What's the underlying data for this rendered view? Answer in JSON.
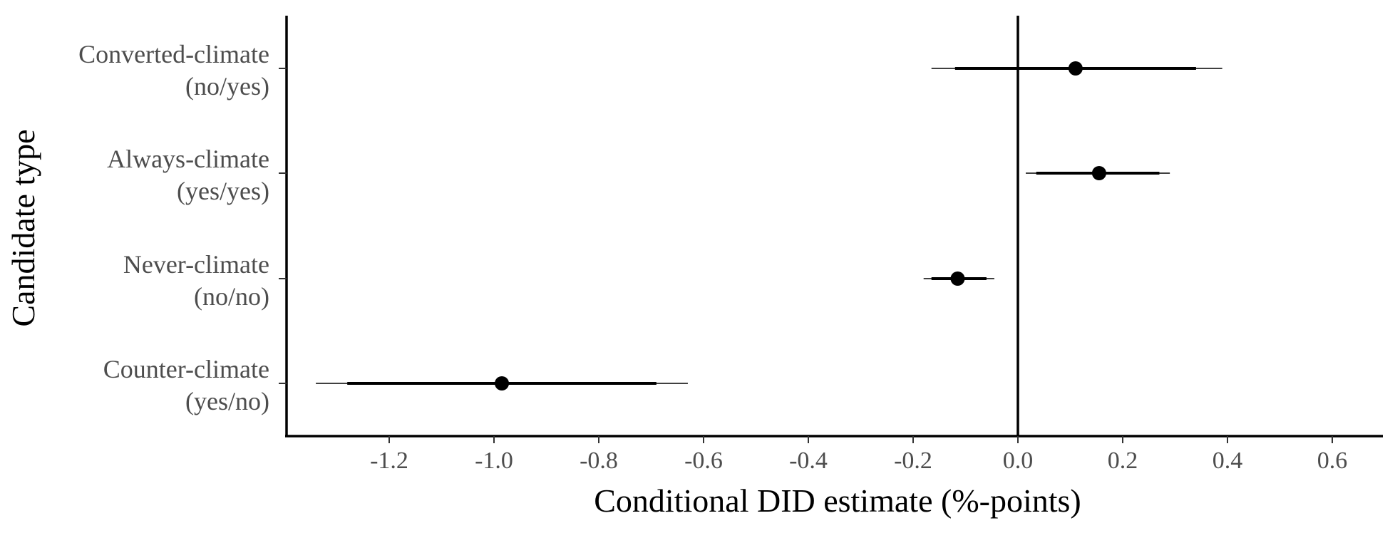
{
  "chart_data": {
    "type": "scatter",
    "subtype": "coefficient-plot",
    "title": "",
    "xlabel": "Conditional DID estimate (%-points)",
    "ylabel": "Candidate type",
    "xlim": [
      -1.4,
      0.7
    ],
    "x_ticks": [
      -1.2,
      -1.0,
      -0.8,
      -0.6,
      -0.4,
      -0.2,
      0.0,
      0.2,
      0.4,
      0.6
    ],
    "x_tick_labels": [
      "-1.2",
      "-1.0",
      "-0.8",
      "-0.6",
      "-0.4",
      "-0.2",
      "0.0",
      "0.2",
      "0.4",
      "0.6"
    ],
    "reference_line_x": 0,
    "grid": false,
    "legend": "none",
    "point_color": "#000000",
    "categories": [
      {
        "line1": "Converted-climate",
        "line2": "(no/yes)",
        "estimate": 0.11,
        "ci_inner": [
          -0.12,
          0.34
        ],
        "ci_outer": [
          -0.165,
          0.39
        ]
      },
      {
        "line1": "Always-climate",
        "line2": "(yes/yes)",
        "estimate": 0.155,
        "ci_inner": [
          0.035,
          0.27
        ],
        "ci_outer": [
          0.015,
          0.29
        ]
      },
      {
        "line1": "Never-climate",
        "line2": "(no/no)",
        "estimate": -0.115,
        "ci_inner": [
          -0.165,
          -0.06
        ],
        "ci_outer": [
          -0.18,
          -0.045
        ]
      },
      {
        "line1": "Counter-climate",
        "line2": "(yes/no)",
        "estimate": -0.985,
        "ci_inner": [
          -1.28,
          -0.69
        ],
        "ci_outer": [
          -1.34,
          -0.63
        ]
      }
    ]
  }
}
